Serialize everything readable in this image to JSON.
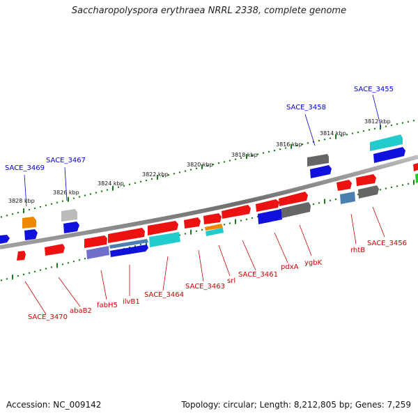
{
  "title": "Saccharopolyspora erythraea NRRL 2338, complete genome",
  "footer": {
    "accession": "Accession: NC_009142",
    "topology": "Topology: circular; Length: 8,212,805 bp; Genes: 7,259"
  },
  "ticks": [
    "3828 kbp",
    "3826 kbp",
    "3824 kbp",
    "3822 kbp",
    "3820 kbp",
    "3818 kbp",
    "3816 kbp",
    "3814 kbp",
    "3812 kbp"
  ],
  "labels_top": [
    "SACE_3469",
    "SACE_3467",
    "SACE_3458",
    "SACE_3455"
  ],
  "labels_bottom": [
    "SACE_3470",
    "abaB2",
    "fabH5",
    "ilvB1",
    "SACE_3464",
    "SACE_3463",
    "srl",
    "SACE_3461",
    "pdxA",
    "ygbK",
    "rhtB",
    "SACE_3456"
  ],
  "colors": {
    "backbone": "#808080",
    "tick_dots": "#1a7a1a",
    "label_top": "#0000cc",
    "label_bottom": "#cc0000",
    "gene_red": "#ee1111",
    "gene_blue": "#1111dd",
    "gene_cyan": "#22cccc",
    "gene_gray": "#666666",
    "gene_orange": "#ee8800",
    "gene_steel": "#4a7fb0",
    "gene_slate": "#7070cc",
    "gene_light": "#bbbbbb",
    "gene_green": "#22cc22"
  }
}
